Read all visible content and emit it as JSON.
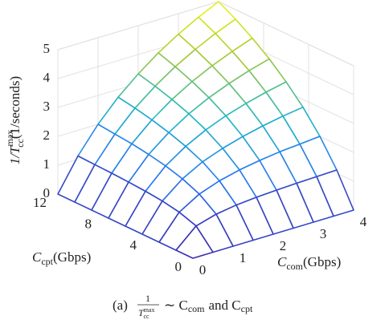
{
  "chart_data": {
    "type": "mesh",
    "x": [
      0,
      0.5,
      1,
      1.5,
      2,
      2.5,
      3,
      3.5,
      4
    ],
    "y": [
      0,
      1.5,
      3,
      4.5,
      6,
      7.5,
      9,
      10.5,
      12
    ],
    "z": [
      [
        0,
        0,
        0,
        0,
        0,
        0,
        0,
        0,
        0
      ],
      [
        0,
        0.63,
        0.83,
        0.94,
        1.0,
        1.04,
        1.07,
        1.09,
        1.11
      ],
      [
        0,
        0.83,
        1.25,
        1.5,
        1.67,
        1.79,
        1.88,
        1.94,
        2.0
      ],
      [
        0,
        0.94,
        1.5,
        1.88,
        2.14,
        2.34,
        2.5,
        2.63,
        2.73
      ],
      [
        0,
        1.0,
        1.67,
        2.14,
        2.5,
        2.78,
        3.0,
        3.18,
        3.33
      ],
      [
        0,
        1.04,
        1.79,
        2.34,
        2.78,
        3.13,
        3.41,
        3.65,
        3.85
      ],
      [
        0,
        1.07,
        1.88,
        2.5,
        3.0,
        3.41,
        3.75,
        4.04,
        4.29
      ],
      [
        0,
        1.09,
        1.94,
        2.63,
        3.18,
        3.65,
        4.04,
        4.38,
        4.67
      ],
      [
        0,
        1.11,
        2.0,
        2.73,
        3.33,
        3.85,
        4.29,
        4.67,
        5.0
      ]
    ],
    "xlim": [
      0,
      4
    ],
    "ylim": [
      0,
      12
    ],
    "zlim": [
      0,
      5
    ],
    "xticks": [
      0,
      1,
      2,
      3,
      4
    ],
    "yticks": [
      0,
      4,
      8,
      12
    ],
    "zticks": [
      0,
      1,
      2,
      3,
      4,
      5
    ],
    "grid": true,
    "colormap": [
      "#3e26a8",
      "#2a78f0",
      "#1fb8c8",
      "#a8c938",
      "#f9fb15"
    ],
    "xlabel": {
      "main": "C",
      "sub": "com",
      "unit": "(Gbps)"
    },
    "ylabel": {
      "main": "C",
      "sub": "cpt",
      "unit": "(Gbps)"
    },
    "zlabel": {
      "main": "1/T",
      "sup": "max",
      "sub": "cc",
      "unit": "(1/seconds)"
    },
    "caption": {
      "tag": "(a)",
      "num": "1",
      "den": "T",
      "den_sup": "max",
      "den_sub": "cc",
      "mid": "∼ C",
      "sub1": "com",
      "and": "and C",
      "sub2": "cpt"
    }
  }
}
